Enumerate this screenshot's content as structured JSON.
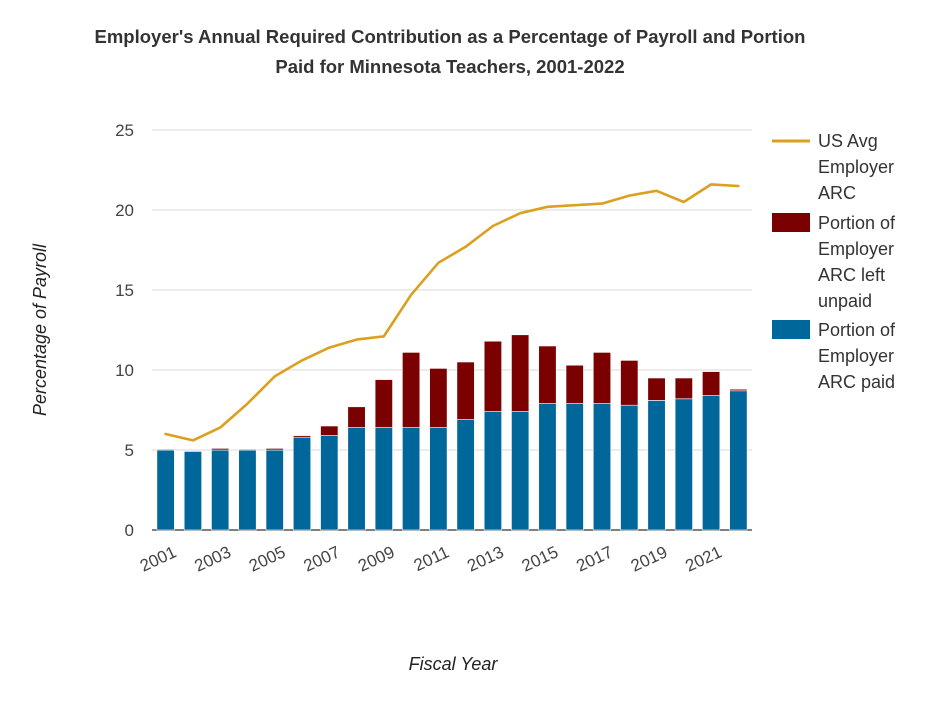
{
  "chart_data": {
    "type": "bar",
    "title_line1": "Employer's Annual Required Contribution as a Percentage of Payroll and Portion",
    "title_line2": "Paid for Minnesota Teachers, 2001-2022",
    "xlabel": "Fiscal Year",
    "ylabel": "Percentage of Payroll",
    "ylim": [
      0,
      25
    ],
    "yticks": [
      "0",
      "5",
      "10",
      "15",
      "20",
      "25"
    ],
    "grid": true,
    "stacked": true,
    "legend_position": "right",
    "categories": [
      "2001",
      "2002",
      "2003",
      "2004",
      "2005",
      "2006",
      "2007",
      "2008",
      "2009",
      "2010",
      "2011",
      "2012",
      "2013",
      "2014",
      "2015",
      "2016",
      "2017",
      "2018",
      "2019",
      "2020",
      "2021",
      "2022"
    ],
    "xtick_labels": [
      "2001",
      "",
      "2003",
      "",
      "2005",
      "",
      "2007",
      "",
      "2009",
      "",
      "2011",
      "",
      "2013",
      "",
      "2015",
      "",
      "2017",
      "",
      "2019",
      "",
      "2021",
      ""
    ],
    "series": [
      {
        "name": "Portion of Employer ARC paid",
        "kind": "bar",
        "color": "#00679a",
        "values": [
          5.0,
          4.9,
          5.0,
          5.0,
          5.0,
          5.8,
          5.9,
          6.4,
          6.4,
          6.4,
          6.4,
          6.9,
          7.4,
          7.4,
          7.9,
          7.9,
          7.9,
          7.8,
          8.1,
          8.2,
          8.4,
          8.7
        ]
      },
      {
        "name": "Portion of Employer ARC left unpaid",
        "kind": "bar",
        "color": "#7b0000",
        "values": [
          0.05,
          0.05,
          0.1,
          0.05,
          0.1,
          0.1,
          0.6,
          1.3,
          3.0,
          4.7,
          3.7,
          3.6,
          4.4,
          4.8,
          3.6,
          2.4,
          3.2,
          2.8,
          1.4,
          1.3,
          1.5,
          0.1
        ]
      },
      {
        "name": "US Avg Employer ARC",
        "kind": "line",
        "color": "#dba01e",
        "values": [
          6.0,
          5.6,
          6.4,
          7.9,
          9.6,
          10.6,
          11.4,
          11.9,
          12.1,
          14.7,
          16.7,
          17.7,
          19.0,
          19.8,
          20.2,
          20.3,
          20.4,
          20.9,
          21.2,
          20.5,
          21.6,
          21.5
        ]
      }
    ],
    "legend": [
      {
        "lines": [
          "US Avg",
          "Employer",
          "ARC"
        ],
        "symbol": "line",
        "color": "#dba01e"
      },
      {
        "lines": [
          "Portion of",
          "Employer",
          "ARC left",
          "unpaid"
        ],
        "symbol": "box",
        "color": "#7b0000"
      },
      {
        "lines": [
          "Portion of",
          "Employer",
          "ARC paid"
        ],
        "symbol": "box",
        "color": "#00679a"
      }
    ]
  }
}
